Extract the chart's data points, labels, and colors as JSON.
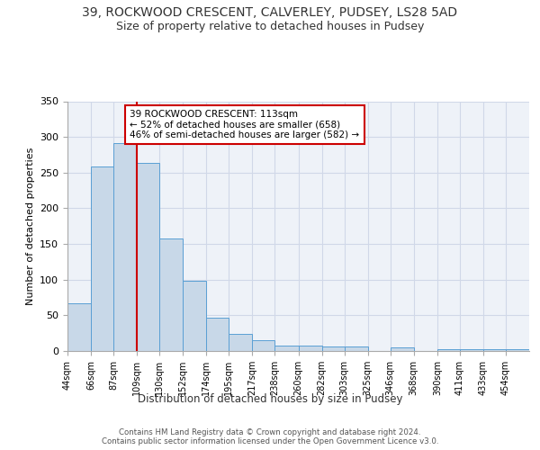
{
  "title1": "39, ROCKWOOD CRESCENT, CALVERLEY, PUDSEY, LS28 5AD",
  "title2": "Size of property relative to detached houses in Pudsey",
  "xlabel": "Distribution of detached houses by size in Pudsey",
  "ylabel": "Number of detached properties",
  "bar_color": "#c8d8e8",
  "bar_edge_color": "#5a9fd4",
  "grid_color": "#d0d8e8",
  "bg_color": "#eef2f8",
  "annotation_text": "39 ROCKWOOD CRESCENT: 113sqm\n← 52% of detached houses are smaller (658)\n46% of semi-detached houses are larger (582) →",
  "vline_x_bin_index": 3,
  "vline_color": "#cc0000",
  "footer": "Contains HM Land Registry data © Crown copyright and database right 2024.\nContains public sector information licensed under the Open Government Licence v3.0.",
  "bins": [
    44,
    66,
    87,
    109,
    130,
    152,
    174,
    195,
    217,
    238,
    260,
    282,
    303,
    325,
    346,
    368,
    390,
    411,
    433,
    454,
    476
  ],
  "counts": [
    67,
    259,
    291,
    263,
    158,
    99,
    47,
    24,
    15,
    8,
    7,
    6,
    6,
    0,
    5,
    0,
    2,
    2,
    2,
    2
  ],
  "ylim": [
    0,
    350
  ],
  "yticks": [
    0,
    50,
    100,
    150,
    200,
    250,
    300,
    350
  ]
}
